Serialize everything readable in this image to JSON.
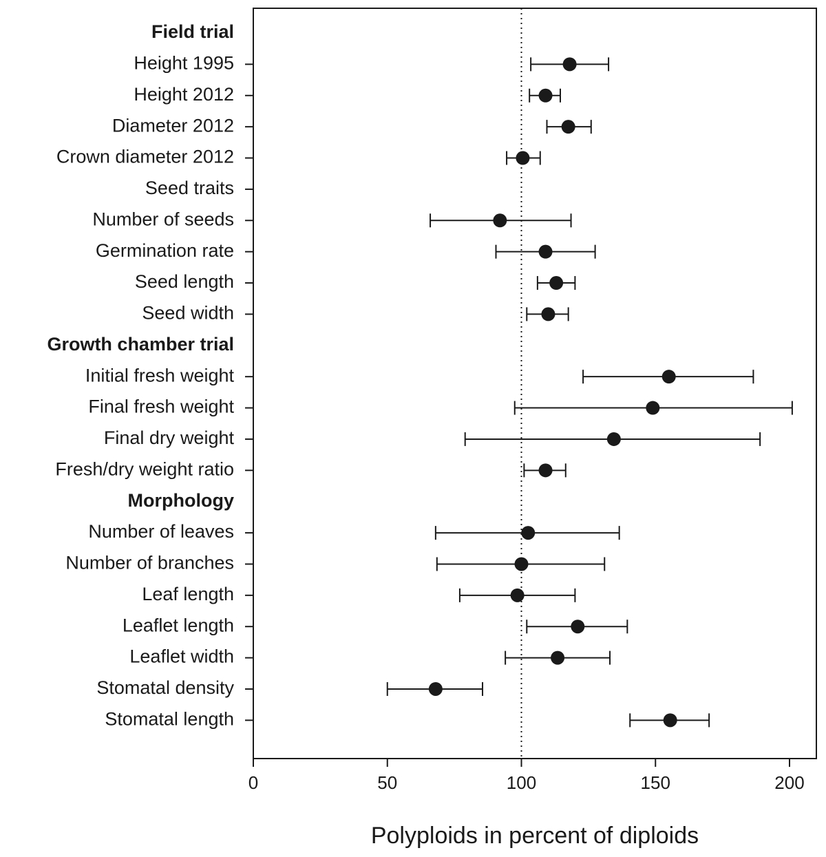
{
  "chart_data": {
    "type": "scatter",
    "title": "",
    "xlabel": "Polyploids in percent of diploids",
    "ylabel": "",
    "xlim": [
      0,
      210
    ],
    "xticks": [
      0,
      50,
      100,
      150,
      200
    ],
    "reference_line": 100,
    "rows": [
      {
        "label": "Field trial",
        "header": true
      },
      {
        "label": "Height 1995",
        "value": 118,
        "low": 103.5,
        "high": 132.5
      },
      {
        "label": "Height 2012",
        "value": 109,
        "low": 103,
        "high": 114.5
      },
      {
        "label": "Diameter 2012",
        "value": 117.5,
        "low": 109.5,
        "high": 126
      },
      {
        "label": "Crown diameter 2012",
        "value": 100.5,
        "low": 94.5,
        "high": 107
      },
      {
        "label": "Seed traits"
      },
      {
        "label": "Number of seeds",
        "value": 92,
        "low": 66,
        "high": 118.5
      },
      {
        "label": "Germination rate",
        "value": 109,
        "low": 90.5,
        "high": 127.5
      },
      {
        "label": "Seed length",
        "value": 113,
        "low": 106,
        "high": 120
      },
      {
        "label": "Seed width",
        "value": 110,
        "low": 102,
        "high": 117.5
      },
      {
        "label": "Growth chamber trial",
        "header": true
      },
      {
        "label": "Initial fresh weight",
        "value": 155,
        "low": 123,
        "high": 186.5
      },
      {
        "label": "Final fresh weight",
        "value": 149,
        "low": 97.5,
        "high": 201
      },
      {
        "label": "Final dry weight",
        "value": 134.5,
        "low": 79,
        "high": 189
      },
      {
        "label": "Fresh/dry weight ratio",
        "value": 109,
        "low": 101,
        "high": 116.5
      },
      {
        "label": "Morphology",
        "header": true
      },
      {
        "label": "Number of leaves",
        "value": 102.5,
        "low": 68,
        "high": 136.5
      },
      {
        "label": "Number of branches",
        "value": 100,
        "low": 68.5,
        "high": 131
      },
      {
        "label": "Leaf length",
        "value": 98.5,
        "low": 77,
        "high": 120
      },
      {
        "label": "Leaflet length",
        "value": 121,
        "low": 102,
        "high": 139.5
      },
      {
        "label": "Leaflet width",
        "value": 113.5,
        "low": 94,
        "high": 133
      },
      {
        "label": "Stomatal density",
        "value": 68,
        "low": 50,
        "high": 85.5
      },
      {
        "label": "Stomatal length",
        "value": 155.5,
        "low": 140.5,
        "high": 170
      }
    ]
  },
  "colors": {
    "marker": "#1a1a1a",
    "line": "#1a1a1a",
    "text": "#1a1a1a",
    "background": "#ffffff"
  }
}
